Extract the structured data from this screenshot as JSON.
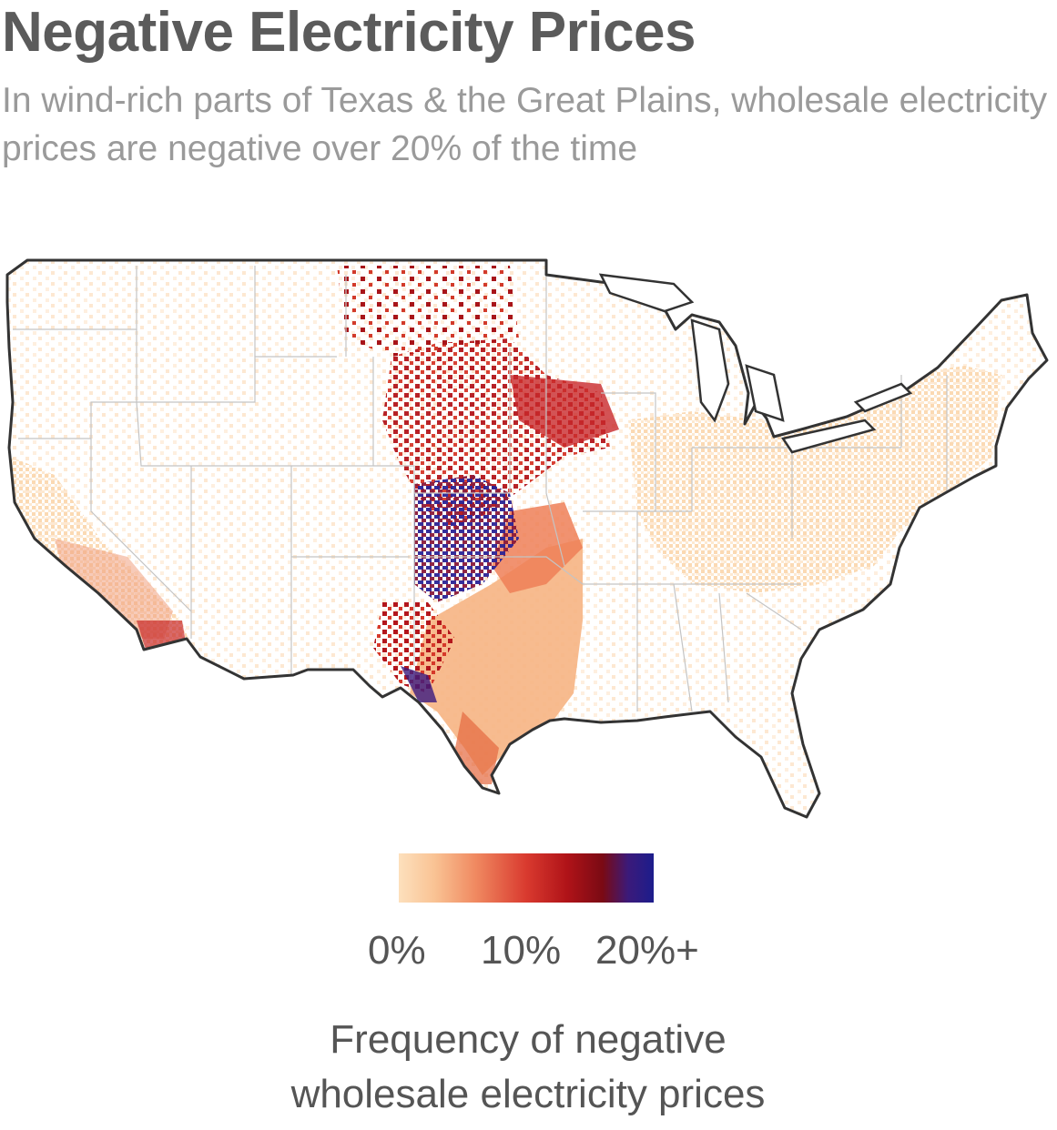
{
  "header": {
    "title": "Negative Electricity Prices",
    "subtitle": "In wind-rich parts of Texas & the Great Plains, wholesale electricity prices are negative over 20% of the time"
  },
  "map": {
    "subject": "Contiguous United States",
    "colors": {
      "low": "#fbd7ad",
      "mid": "#e2563a",
      "high": "#a50f15",
      "top": "#2c1b8e",
      "outline": "#333333",
      "state_border": "#bdbdbd"
    }
  },
  "legend": {
    "ticks": [
      "0%",
      "10%",
      "20%+"
    ],
    "title_line1": "Frequency of negative",
    "title_line2": "wholesale electricity prices",
    "gradient": [
      "#fde0bd",
      "#f9c394",
      "#f08a61",
      "#d93a2f",
      "#b01318",
      "#7a0a14",
      "#3b1a7a",
      "#1c1d8c"
    ]
  }
}
